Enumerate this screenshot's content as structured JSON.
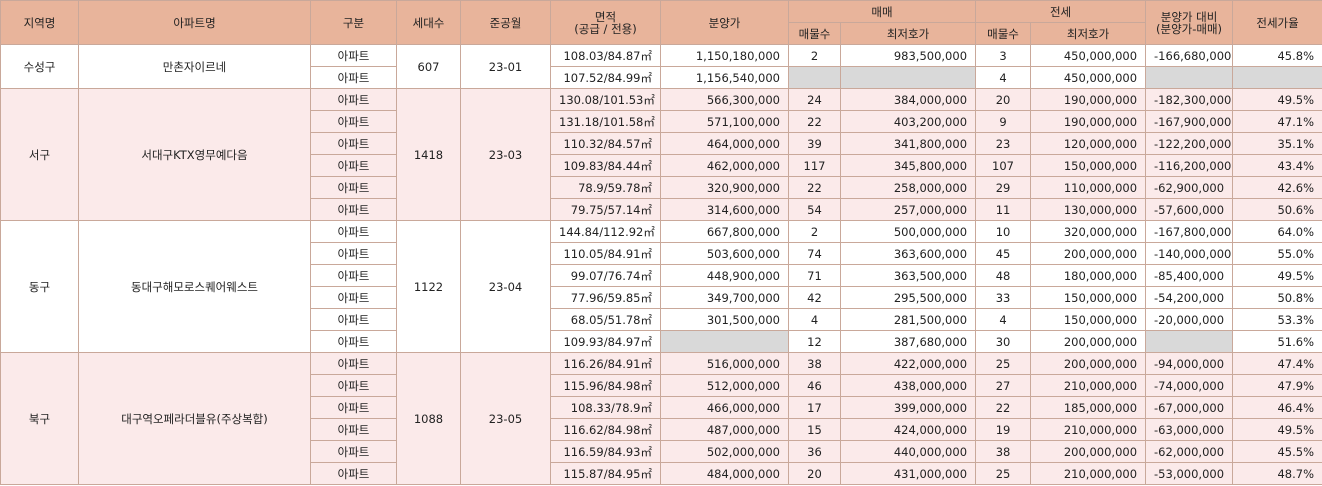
{
  "table": {
    "header": [
      "지역명",
      "아파트명",
      "구분",
      "세대수",
      "준공월",
      "면적\n(공급 / 전용)",
      "분양가",
      "매매",
      "전세",
      "분양가 대비\n(분양가-매매)",
      "전세가율"
    ],
    "subheader": [
      "매물수",
      "최저호가",
      "매물수",
      "최저호가"
    ],
    "groups": [
      {
        "region": "수성구",
        "name": "만촌자이르네",
        "households": 607,
        "completed": "23-01",
        "rows": [
          [
            "아파트",
            "108.03/84.87㎡",
            "1,150,180,000",
            2,
            "983,500,000",
            3,
            "450,000,000",
            "-166,680,000",
            "45.8%"
          ],
          [
            "아파트",
            "107.52/84.99㎡",
            "1,156,540,000",
            null,
            null,
            4,
            "450,000,000",
            null,
            null
          ]
        ]
      },
      {
        "region": "서구",
        "name": "서대구KTX영무예다음",
        "households": 1418,
        "completed": "23-03",
        "rows": [
          [
            "아파트",
            "130.08/101.53㎡",
            "566,300,000",
            24,
            "384,000,000",
            20,
            "190,000,000",
            "-182,300,000",
            "49.5%"
          ],
          [
            "아파트",
            "131.18/101.58㎡",
            "571,100,000",
            22,
            "403,200,000",
            9,
            "190,000,000",
            "-167,900,000",
            "47.1%"
          ],
          [
            "아파트",
            "110.32/84.57㎡",
            "464,000,000",
            39,
            "341,800,000",
            23,
            "120,000,000",
            "-122,200,000",
            "35.1%"
          ],
          [
            "아파트",
            "109.83/84.44㎡",
            "462,000,000",
            117,
            "345,800,000",
            107,
            "150,000,000",
            "-116,200,000",
            "43.4%"
          ],
          [
            "아파트",
            "78.9/59.78㎡",
            "320,900,000",
            22,
            "258,000,000",
            29,
            "110,000,000",
            "-62,900,000",
            "42.6%"
          ],
          [
            "아파트",
            "79.75/57.14㎡",
            "314,600,000",
            54,
            "257,000,000",
            11,
            "130,000,000",
            "-57,600,000",
            "50.6%"
          ]
        ]
      },
      {
        "region": "동구",
        "name": "동대구해모로스퀘어웨스트",
        "households": 1122,
        "completed": "23-04",
        "rows": [
          [
            "아파트",
            "144.84/112.92㎡",
            "667,800,000",
            2,
            "500,000,000",
            10,
            "320,000,000",
            "-167,800,000",
            "64.0%"
          ],
          [
            "아파트",
            "110.05/84.91㎡",
            "503,600,000",
            74,
            "363,600,000",
            45,
            "200,000,000",
            "-140,000,000",
            "55.0%"
          ],
          [
            "아파트",
            "99.07/76.74㎡",
            "448,900,000",
            71,
            "363,500,000",
            48,
            "180,000,000",
            "-85,400,000",
            "49.5%"
          ],
          [
            "아파트",
            "77.96/59.85㎡",
            "349,700,000",
            42,
            "295,500,000",
            33,
            "150,000,000",
            "-54,200,000",
            "50.8%"
          ],
          [
            "아파트",
            "68.05/51.78㎡",
            "301,500,000",
            4,
            "281,500,000",
            4,
            "150,000,000",
            "-20,000,000",
            "53.3%"
          ],
          [
            "아파트",
            "109.93/84.97㎡",
            null,
            12,
            "387,680,000",
            30,
            "200,000,000",
            null,
            "51.6%"
          ]
        ]
      },
      {
        "region": "북구",
        "name": "대구역오페라더블유(주상복합)",
        "households": 1088,
        "completed": "23-05",
        "rows": [
          [
            "아파트",
            "116.26/84.91㎡",
            "516,000,000",
            38,
            "422,000,000",
            25,
            "200,000,000",
            "-94,000,000",
            "47.4%"
          ],
          [
            "아파트",
            "115.96/84.98㎡",
            "512,000,000",
            46,
            "438,000,000",
            27,
            "210,000,000",
            "-74,000,000",
            "47.9%"
          ],
          [
            "아파트",
            "108.33/78.9㎡",
            "466,000,000",
            17,
            "399,000,000",
            22,
            "185,000,000",
            "-67,000,000",
            "46.4%"
          ],
          [
            "아파트",
            "116.62/84.98㎡",
            "487,000,000",
            15,
            "424,000,000",
            19,
            "210,000,000",
            "-63,000,000",
            "49.5%"
          ],
          [
            "아파트",
            "116.59/84.93㎡",
            "502,000,000",
            36,
            "440,000,000",
            38,
            "200,000,000",
            "-62,000,000",
            "45.5%"
          ],
          [
            "아파트",
            "115.87/84.95㎡",
            "484,000,000",
            20,
            "431,000,000",
            25,
            "210,000,000",
            "-53,000,000",
            "48.7%"
          ]
        ]
      }
    ]
  }
}
